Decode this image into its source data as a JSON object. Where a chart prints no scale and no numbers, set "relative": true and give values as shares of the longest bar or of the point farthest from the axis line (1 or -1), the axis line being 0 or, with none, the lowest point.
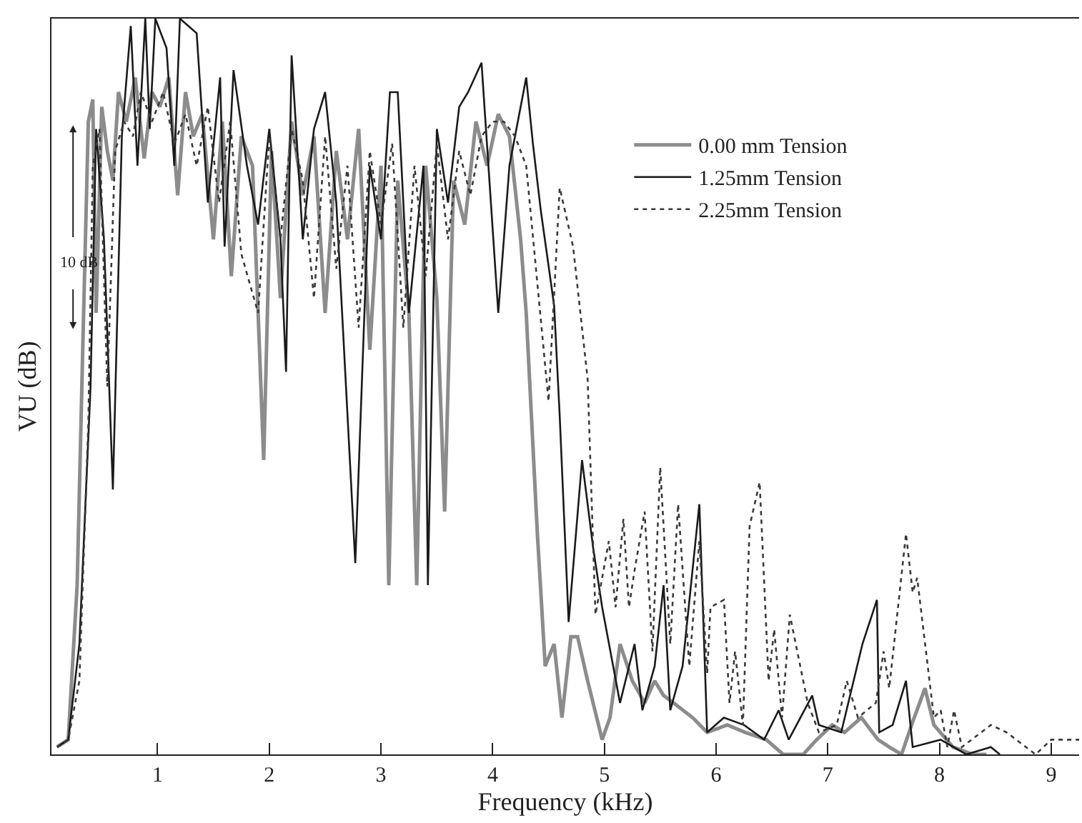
{
  "chart_data": {
    "type": "line",
    "xlabel": "Frequency (kHz)",
    "ylabel": "VU (dB)",
    "relative": true,
    "xlim": [
      0.05,
      9.25
    ],
    "xticks": [
      1,
      2,
      3,
      4,
      5,
      6,
      7,
      8,
      9
    ],
    "legend": "top right",
    "marker": "none",
    "annotations": [
      "10 dB"
    ],
    "series": [
      {
        "name": "0.00 mm Tension",
        "color": "#8c8c8c",
        "line_style": "solid",
        "x": [
          0.1,
          0.2,
          0.28,
          0.33,
          0.38,
          0.42,
          0.45,
          0.5,
          0.55,
          0.6,
          0.65,
          0.72,
          0.8,
          0.88,
          0.95,
          1.02,
          1.1,
          1.18,
          1.25,
          1.32,
          1.4,
          1.5,
          1.58,
          1.66,
          1.75,
          1.85,
          1.95,
          2.02,
          2.1,
          2.2,
          2.3,
          2.4,
          2.5,
          2.6,
          2.7,
          2.8,
          2.9,
          3.0,
          3.07,
          3.15,
          3.25,
          3.32,
          3.4,
          3.5,
          3.57,
          3.65,
          3.75,
          3.85,
          3.95,
          4.05,
          4.15,
          4.25,
          4.3,
          4.4,
          4.47,
          4.55,
          4.62,
          4.7,
          4.76,
          4.85,
          4.98,
          5.05,
          5.14,
          5.25,
          5.36,
          5.45,
          5.53,
          5.62,
          5.79,
          5.92,
          6.1,
          6.26,
          6.45,
          6.6,
          6.78,
          6.9,
          7.04,
          7.15,
          7.3,
          7.45,
          7.55,
          7.66,
          7.75,
          7.87,
          7.95,
          8.12,
          8.3,
          8.42
        ],
        "values": [
          0.01,
          0.02,
          0.23,
          0.55,
          0.86,
          0.89,
          0.6,
          0.88,
          0.82,
          0.78,
          0.9,
          0.86,
          0.92,
          0.81,
          0.9,
          0.88,
          0.92,
          0.76,
          0.9,
          0.84,
          0.87,
          0.7,
          0.86,
          0.65,
          0.84,
          0.8,
          0.4,
          0.82,
          0.62,
          0.86,
          0.76,
          0.84,
          0.6,
          0.82,
          0.7,
          0.85,
          0.55,
          0.8,
          0.23,
          0.78,
          0.6,
          0.23,
          0.8,
          0.62,
          0.33,
          0.78,
          0.72,
          0.86,
          0.8,
          0.87,
          0.84,
          0.7,
          0.6,
          0.3,
          0.12,
          0.15,
          0.05,
          0.16,
          0.16,
          0.1,
          0.02,
          0.05,
          0.15,
          0.1,
          0.07,
          0.1,
          0.08,
          0.07,
          0.05,
          0.03,
          0.04,
          0.03,
          0.02,
          0.0,
          0.0,
          0.02,
          0.04,
          0.03,
          0.05,
          0.02,
          0.01,
          0.0,
          0.04,
          0.09,
          0.04,
          0.01,
          0.0,
          0.0
        ]
      },
      {
        "name": "1.25mm Tension",
        "color": "#1a1a1a",
        "line_style": "solid",
        "x": [
          0.1,
          0.2,
          0.3,
          0.4,
          0.45,
          0.52,
          0.6,
          0.68,
          0.76,
          0.82,
          0.89,
          0.93,
          0.98,
          1.08,
          1.15,
          1.2,
          1.35,
          1.45,
          1.56,
          1.6,
          1.68,
          1.8,
          1.9,
          2.0,
          2.1,
          2.15,
          2.2,
          2.3,
          2.4,
          2.5,
          2.6,
          2.77,
          2.9,
          3.0,
          3.08,
          3.15,
          3.25,
          3.38,
          3.42,
          3.5,
          3.6,
          3.7,
          3.78,
          3.9,
          4.05,
          4.15,
          4.3,
          4.36,
          4.43,
          4.55,
          4.6,
          4.68,
          4.8,
          4.9,
          4.98,
          5.14,
          5.27,
          5.34,
          5.45,
          5.53,
          5.59,
          5.7,
          5.85,
          5.92,
          6.07,
          6.25,
          6.43,
          6.56,
          6.65,
          6.86,
          6.92,
          7.12,
          7.31,
          7.44,
          7.46,
          7.58,
          7.7,
          7.76,
          8.01,
          8.24,
          8.46,
          8.54
        ],
        "values": [
          0.01,
          0.02,
          0.15,
          0.5,
          0.85,
          0.7,
          0.36,
          0.84,
          0.99,
          0.8,
          1.0,
          0.85,
          1.0,
          0.96,
          0.8,
          1.0,
          0.98,
          0.75,
          0.92,
          0.69,
          0.93,
          0.8,
          0.72,
          0.85,
          0.7,
          0.52,
          0.95,
          0.7,
          0.85,
          0.9,
          0.75,
          0.26,
          0.8,
          0.7,
          0.9,
          0.9,
          0.6,
          0.8,
          0.23,
          0.85,
          0.75,
          0.88,
          0.9,
          0.94,
          0.6,
          0.8,
          0.92,
          0.83,
          0.74,
          0.61,
          0.46,
          0.18,
          0.4,
          0.28,
          0.2,
          0.07,
          0.15,
          0.06,
          0.12,
          0.23,
          0.06,
          0.12,
          0.34,
          0.03,
          0.05,
          0.04,
          0.02,
          0.06,
          0.02,
          0.08,
          0.04,
          0.03,
          0.15,
          0.21,
          0.03,
          0.04,
          0.1,
          0.01,
          0.02,
          0.0,
          0.01,
          0.0
        ]
      },
      {
        "name": "2.25mm Tension",
        "color": "#3a3a3a",
        "line_style": "dotted",
        "x": [
          0.1,
          0.2,
          0.3,
          0.38,
          0.42,
          0.48,
          0.55,
          0.62,
          0.7,
          0.78,
          0.85,
          0.95,
          1.05,
          1.15,
          1.25,
          1.35,
          1.45,
          1.55,
          1.65,
          1.75,
          1.9,
          2.0,
          2.1,
          2.2,
          2.3,
          2.4,
          2.5,
          2.6,
          2.7,
          2.8,
          2.9,
          3.0,
          3.1,
          3.2,
          3.3,
          3.4,
          3.5,
          3.6,
          3.7,
          3.8,
          3.9,
          4.0,
          4.1,
          4.2,
          4.3,
          4.5,
          4.6,
          4.72,
          4.85,
          4.92,
          5.04,
          5.1,
          5.17,
          5.22,
          5.27,
          5.36,
          5.43,
          5.5,
          5.59,
          5.66,
          5.76,
          5.85,
          5.92,
          5.95,
          6.07,
          6.12,
          6.17,
          6.24,
          6.3,
          6.39,
          6.47,
          6.52,
          6.59,
          6.66,
          6.82,
          6.92,
          7.08,
          7.17,
          7.27,
          7.43,
          7.5,
          7.55,
          7.7,
          7.76,
          7.8,
          7.95,
          8.01,
          8.07,
          8.13,
          8.2,
          8.46,
          8.6,
          8.86,
          9.0,
          9.25
        ],
        "values": [
          0.01,
          0.02,
          0.1,
          0.45,
          0.8,
          0.85,
          0.5,
          0.82,
          0.86,
          0.84,
          0.9,
          0.86,
          0.9,
          0.83,
          0.87,
          0.8,
          0.88,
          0.75,
          0.86,
          0.68,
          0.6,
          0.84,
          0.7,
          0.85,
          0.78,
          0.62,
          0.84,
          0.66,
          0.8,
          0.58,
          0.82,
          0.72,
          0.83,
          0.58,
          0.8,
          0.65,
          0.83,
          0.7,
          0.82,
          0.76,
          0.84,
          0.86,
          0.86,
          0.84,
          0.8,
          0.48,
          0.77,
          0.69,
          0.51,
          0.19,
          0.29,
          0.2,
          0.32,
          0.2,
          0.25,
          0.33,
          0.14,
          0.39,
          0.15,
          0.34,
          0.12,
          0.29,
          0.11,
          0.2,
          0.21,
          0.07,
          0.14,
          0.04,
          0.31,
          0.37,
          0.1,
          0.17,
          0.05,
          0.19,
          0.07,
          0.03,
          0.04,
          0.1,
          0.05,
          0.07,
          0.14,
          0.09,
          0.3,
          0.22,
          0.24,
          0.05,
          0.06,
          0.01,
          0.06,
          0.01,
          0.04,
          0.03,
          0.0,
          0.02,
          0.02
        ]
      }
    ]
  }
}
